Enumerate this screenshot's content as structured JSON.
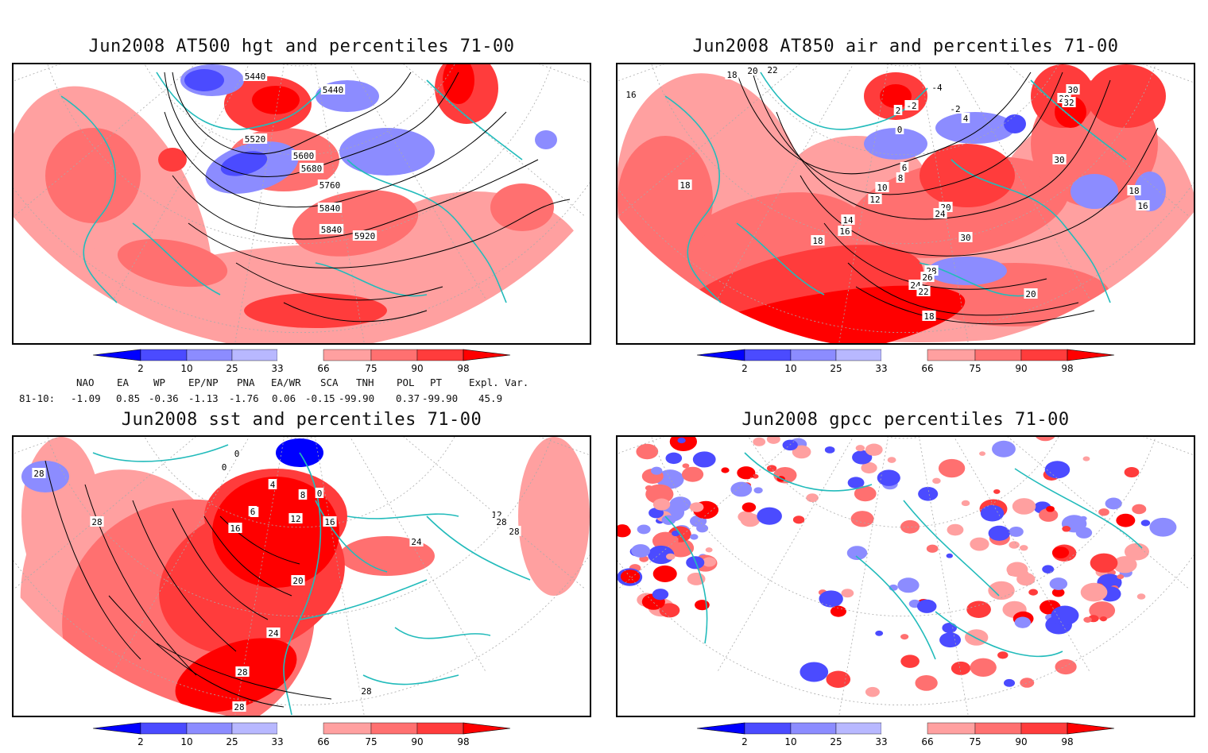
{
  "panels": [
    {
      "id": "hgt",
      "title": "Jun2008 AT500 hgt and percentiles 71-00",
      "contour_labels": [
        "5440",
        "5440",
        "5520",
        "5600",
        "5680",
        "5760",
        "5840",
        "5840",
        "5920"
      ]
    },
    {
      "id": "air",
      "title": "Jun2008 AT850 air and percentiles 71-00",
      "contour_labels": [
        "16",
        "18",
        "20",
        "22",
        "-4",
        "-2",
        "-2",
        "2",
        "0",
        "4",
        "6",
        "8",
        "10",
        "12",
        "14",
        "16",
        "18",
        "20",
        "24",
        "30",
        "28",
        "26",
        "24",
        "22",
        "18",
        "20",
        "28",
        "30",
        "32",
        "30",
        "18",
        "16",
        "18"
      ]
    },
    {
      "id": "sst",
      "title": "Jun2008 sst and percentiles 71-00",
      "contour_labels": [
        "28",
        "28",
        "16",
        "0",
        "0",
        "8",
        "4",
        "0",
        "12",
        "8",
        "6",
        "16",
        "20",
        "24",
        "28",
        "28",
        "28",
        "24",
        "12",
        "28",
        "28"
      ]
    },
    {
      "id": "gpcc",
      "title": "Jun2008 gpcc percentiles 71-00",
      "contour_labels": []
    }
  ],
  "colorbar": {
    "ticks": [
      "2",
      "10",
      "25",
      "33",
      "66",
      "75",
      "90",
      "98"
    ],
    "colors": {
      "blue_dark": "#0000ff",
      "blue_mid": "#4b4bff",
      "blue_light": "#8c8cff",
      "blue_pale": "#b8b8ff",
      "red_pale": "#ffa0a0",
      "red_light": "#ff7070",
      "red_mid": "#ff3c3c",
      "red_dark": "#ff0000"
    }
  },
  "indices": {
    "headers": [
      "NAO",
      "EA",
      "WP",
      "EP/NP",
      "PNA",
      "EA/WR",
      "SCA",
      "TNH",
      "POL",
      "PT",
      "Expl. Var."
    ],
    "row_label": "81-10:",
    "values": [
      "-1.09",
      "0.85",
      "-0.36",
      "-1.13",
      "-1.76",
      "0.06",
      "-0.15",
      "-99.90",
      "0.37",
      "-99.90",
      "45.9"
    ]
  },
  "colors": {
    "coast": "#22bbbb",
    "contour": "#000000",
    "grid": "#aaaaaa"
  }
}
